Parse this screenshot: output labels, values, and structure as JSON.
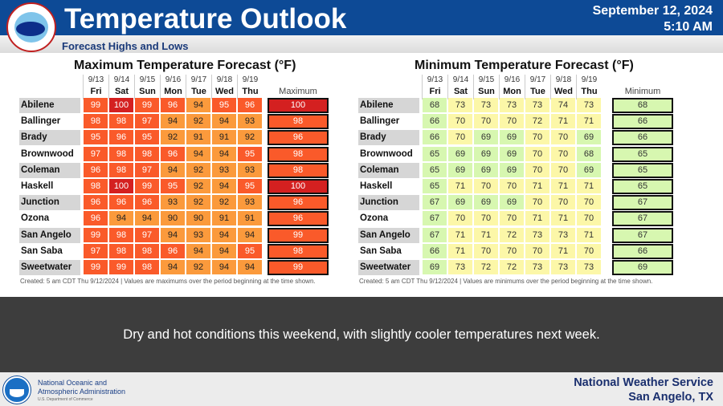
{
  "header": {
    "title": "Temperature Outlook",
    "subtitle": "Forecast Highs and Lows",
    "date": "September 12, 2024",
    "time": "5:10 AM",
    "logo_text": "NATIONAL WEATHER SERVICE"
  },
  "days": [
    {
      "date": "9/13",
      "day": "Fri"
    },
    {
      "date": "9/14",
      "day": "Sat"
    },
    {
      "date": "9/15",
      "day": "Sun"
    },
    {
      "date": "9/16",
      "day": "Mon"
    },
    {
      "date": "9/17",
      "day": "Tue"
    },
    {
      "date": "9/18",
      "day": "Wed"
    },
    {
      "date": "9/19",
      "day": "Thu"
    }
  ],
  "cities": [
    "Abilene",
    "Ballinger",
    "Brady",
    "Brownwood",
    "Coleman",
    "Haskell",
    "Junction",
    "Ozona",
    "San Angelo",
    "San Saba",
    "Sweetwater"
  ],
  "max_table": {
    "title": "Maximum Temperature Forecast (°F)",
    "summary_label": "Maximum",
    "values": [
      [
        99,
        100,
        99,
        96,
        94,
        95,
        96
      ],
      [
        98,
        98,
        97,
        94,
        92,
        94,
        93
      ],
      [
        95,
        96,
        95,
        92,
        91,
        91,
        92
      ],
      [
        97,
        98,
        98,
        96,
        94,
        94,
        95
      ],
      [
        96,
        98,
        97,
        94,
        92,
        93,
        93
      ],
      [
        98,
        100,
        99,
        95,
        92,
        94,
        95
      ],
      [
        96,
        96,
        96,
        93,
        92,
        92,
        93
      ],
      [
        96,
        94,
        94,
        90,
        90,
        91,
        91
      ],
      [
        99,
        98,
        97,
        94,
        93,
        94,
        94
      ],
      [
        97,
        98,
        98,
        96,
        94,
        94,
        95
      ],
      [
        99,
        99,
        98,
        94,
        92,
        94,
        94
      ]
    ],
    "summary": [
      100,
      98,
      96,
      98,
      98,
      100,
      96,
      96,
      99,
      98,
      99
    ],
    "note": "Created: 5 am CDT Thu 9/12/2024  |  Values are maximums over the period beginning at the time shown."
  },
  "min_table": {
    "title": "Minimum Temperature Forecast (°F)",
    "summary_label": "Minimum",
    "values": [
      [
        68,
        73,
        73,
        73,
        73,
        74,
        73
      ],
      [
        66,
        70,
        70,
        70,
        72,
        71,
        71
      ],
      [
        66,
        70,
        69,
        69,
        70,
        70,
        69
      ],
      [
        65,
        69,
        69,
        69,
        70,
        70,
        68
      ],
      [
        65,
        69,
        69,
        69,
        70,
        70,
        69
      ],
      [
        65,
        71,
        70,
        70,
        71,
        71,
        71
      ],
      [
        67,
        69,
        69,
        69,
        70,
        70,
        70
      ],
      [
        67,
        70,
        70,
        70,
        71,
        71,
        70
      ],
      [
        67,
        71,
        71,
        72,
        73,
        73,
        71
      ],
      [
        66,
        71,
        70,
        70,
        70,
        71,
        70
      ],
      [
        69,
        73,
        72,
        72,
        73,
        73,
        73
      ]
    ],
    "summary": [
      68,
      66,
      66,
      65,
      65,
      65,
      67,
      67,
      67,
      66,
      69
    ],
    "note": "Created: 5 am CDT Thu 9/12/2024  |  Values are minimums over the period beginning at the time shown."
  },
  "colors": {
    "header_blue": "#0d4a96",
    "max_100": "#d42020",
    "max_95_99": "#fa5a2a",
    "max_90_94": "#fb9a3c",
    "min_below_70": "#d7f7b0",
    "min_70_plus": "#fcf7a8"
  },
  "message": "Dry and hot conditions this weekend, with slightly cooler temperatures next week.",
  "footer": {
    "agency_line1": "National Oceanic and",
    "agency_line2": "Atmospheric Administration",
    "department": "U.S. Department of Commerce",
    "office_line1": "National Weather Service",
    "office_line2": "San Angelo, TX"
  }
}
